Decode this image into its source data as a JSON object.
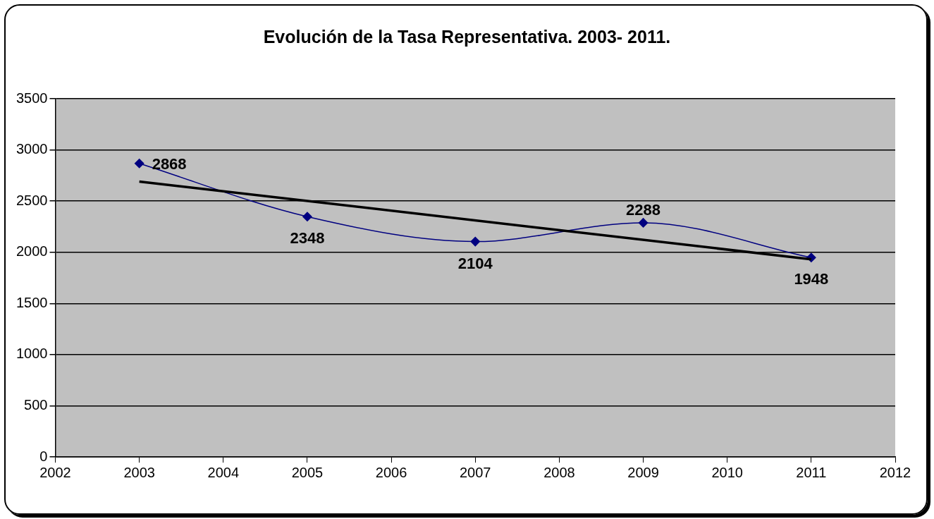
{
  "chart_data": {
    "type": "line",
    "title": "Evolución de la Tasa Representativa. 2003- 2011.",
    "xlim": [
      2002,
      2012
    ],
    "xticks": [
      2002,
      2003,
      2004,
      2005,
      2006,
      2007,
      2008,
      2009,
      2010,
      2011,
      2012
    ],
    "ylim": [
      0,
      3500
    ],
    "yticks": [
      0,
      500,
      1000,
      1500,
      2000,
      2500,
      3000,
      3500
    ],
    "grid": "y",
    "legend": false,
    "series": [
      {
        "color": "#000080",
        "x": [
          2003,
          2005,
          2007,
          2009,
          2011
        ],
        "values": [
          2868,
          2348,
          2104,
          2288,
          1948
        ],
        "value_labels": [
          "2868",
          "2348",
          "2104",
          "2288",
          "1948"
        ],
        "marker": "diamond",
        "line_style": "solid"
      },
      {
        "color": "#000000",
        "x": [
          2003,
          2011
        ],
        "values": [
          2691,
          1931
        ],
        "marker": "none",
        "line_style": "solid"
      }
    ]
  }
}
